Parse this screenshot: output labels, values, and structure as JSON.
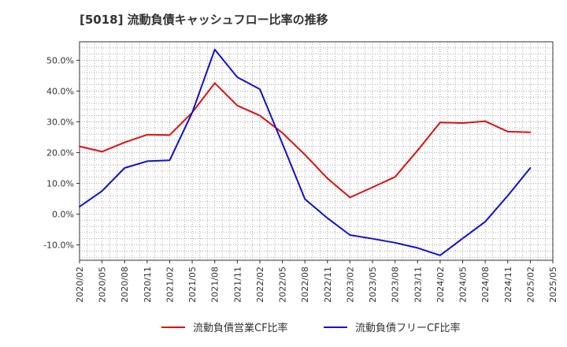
{
  "title": "[5018]  流動負債キャッシュフロー比率の推移",
  "chart_data": {
    "type": "line",
    "title": "[5018]  流動負債キャッシュフロー比率の推移",
    "xlabel": "",
    "ylabel": "",
    "x": [
      "2020/02",
      "2020/05",
      "2020/08",
      "2020/11",
      "2021/02",
      "2021/05",
      "2021/08",
      "2021/11",
      "2022/02",
      "2022/05",
      "2022/08",
      "2022/11",
      "2023/02",
      "2023/05",
      "2023/08",
      "2023/11",
      "2024/02",
      "2024/05",
      "2024/08",
      "2024/11",
      "2025/02",
      "2025/05"
    ],
    "ylim": [
      -15,
      56
    ],
    "y_ticks": [
      -10,
      0,
      10,
      20,
      30,
      40,
      50
    ],
    "y_tick_labels": [
      "-10.0%",
      "0.0%",
      "10.0%",
      "20.0%",
      "30.0%",
      "40.0%",
      "50.0%"
    ],
    "grid": true,
    "legend_position": "bottom",
    "series": [
      {
        "name": "流動負債営業CF比率",
        "color": "#dd1111",
        "values": [
          22.0,
          20.3,
          23.3,
          25.8,
          25.7,
          33.0,
          42.6,
          35.3,
          32.0,
          26.4,
          19.3,
          11.6,
          5.4,
          8.7,
          12.1,
          20.7,
          29.8,
          29.6,
          30.2,
          26.8,
          26.6,
          null
        ]
      },
      {
        "name": "流動負債フリーCF比率",
        "color": "#1111cc",
        "values": [
          2.4,
          7.5,
          15.0,
          17.2,
          17.5,
          33.0,
          53.5,
          44.5,
          40.6,
          22.9,
          4.9,
          -1.3,
          -6.8,
          -8.0,
          -9.3,
          -11.0,
          -13.4,
          -7.9,
          -2.5,
          6.0,
          15.0,
          null
        ]
      }
    ]
  }
}
